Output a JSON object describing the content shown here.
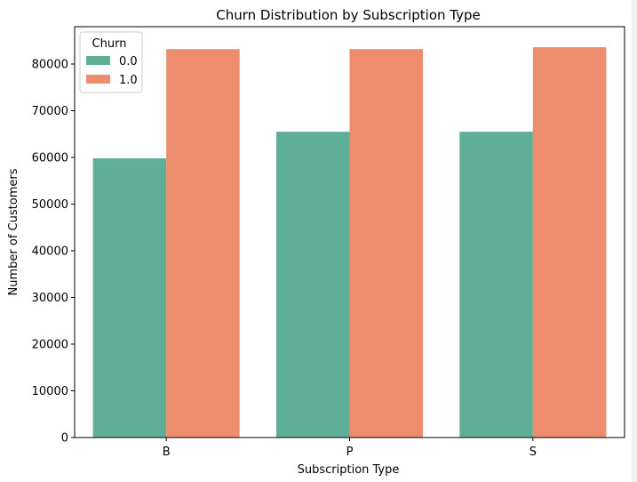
{
  "chart_data": {
    "type": "bar",
    "title": "Churn Distribution by Subscription Type",
    "xlabel": "Subscription Type",
    "ylabel": "Number of Customers",
    "categories": [
      "B",
      "P",
      "S"
    ],
    "series": [
      {
        "name": "0.0",
        "values": [
          59800,
          65500,
          65500
        ],
        "color": "#5fae98"
      },
      {
        "name": "1.0",
        "values": [
          83200,
          83200,
          83600
        ],
        "color": "#ee8d6e"
      }
    ],
    "ylim": [
      0,
      88000
    ],
    "yticks": [
      0,
      10000,
      20000,
      30000,
      40000,
      50000,
      60000,
      70000,
      80000
    ],
    "grid": false,
    "legend": {
      "title": "Churn",
      "position": "top-left"
    }
  }
}
